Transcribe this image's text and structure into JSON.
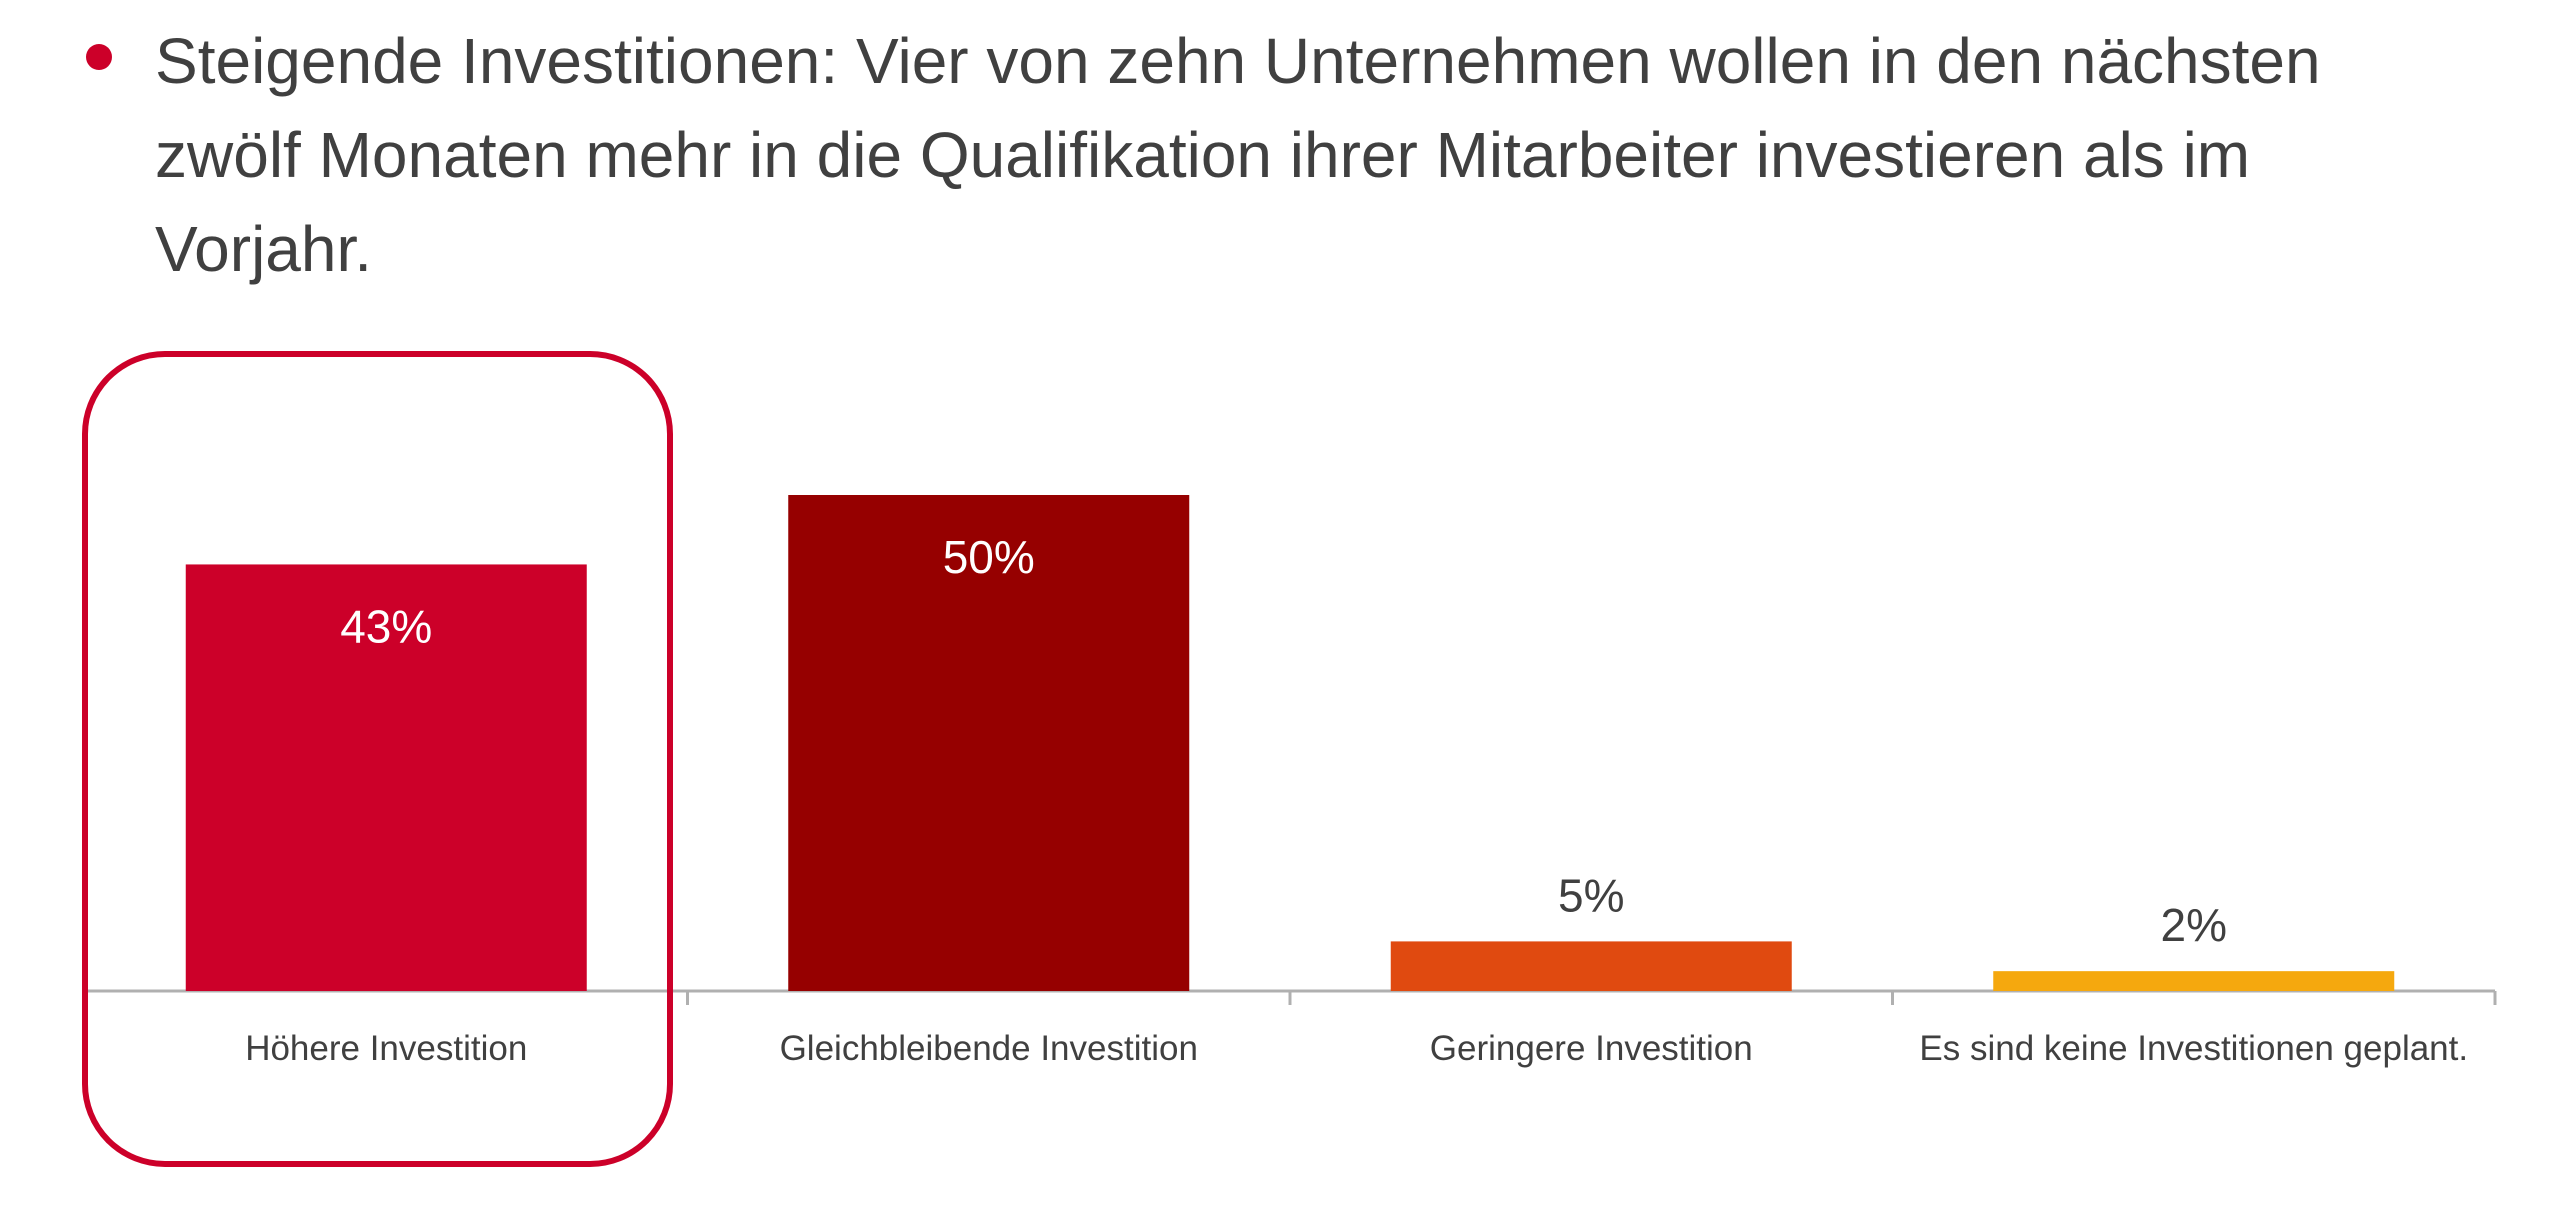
{
  "headline": "Steigende Investitionen: Vier von zehn Unternehmen wollen in den nächsten zwölf Monaten mehr in die Qualifikation ihrer Mitarbeiter investieren als im Vorjahr.",
  "colors": {
    "text": "#404040",
    "accent": "#cc0029",
    "axis": "#b0b0b0"
  },
  "chart_data": {
    "type": "bar",
    "title": "",
    "xlabel": "",
    "ylabel": "",
    "ylim": [
      0,
      50
    ],
    "grid": false,
    "categories": [
      "Höhere Investition",
      "Gleichbleibende Investition",
      "Geringere Investition",
      "Es sind keine Investitionen geplant."
    ],
    "values": [
      43,
      50,
      5,
      2
    ],
    "data_labels": [
      "43%",
      "50%",
      "5%",
      "2%"
    ],
    "bar_colors": [
      "#cc0029",
      "#960000",
      "#e04a10",
      "#f5a80e"
    ],
    "highlighted_category": "Höhere Investition",
    "highlight_color": "#cc0029"
  }
}
